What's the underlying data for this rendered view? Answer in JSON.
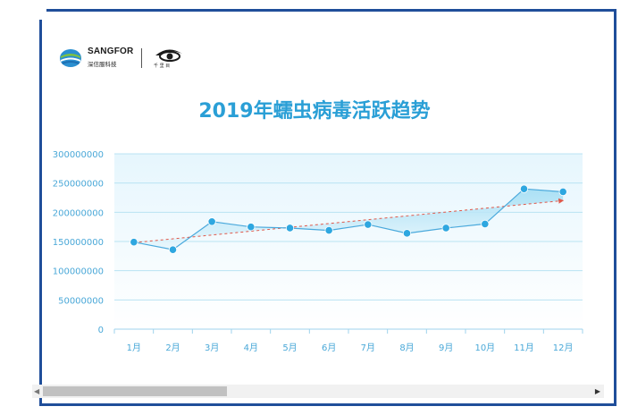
{
  "brand": {
    "name": "SANGFOR",
    "subtitle": "深信服科技",
    "partner_caption": "千 里 目"
  },
  "colors": {
    "title": "#2a9fd6",
    "line": "#4aa9dc",
    "marker": "#2ea7e0",
    "trend": "#e0584a",
    "grid": "#b9e3f3",
    "plot_bg_top": "#f4fbff",
    "frame": "#1f4e9a"
  },
  "chart_data": {
    "type": "line",
    "title": "2019年蠕虫病毒活跃趋势",
    "xlabel": "",
    "ylabel": "",
    "categories": [
      "1月",
      "2月",
      "3月",
      "4月",
      "5月",
      "6月",
      "7月",
      "8月",
      "9月",
      "10月",
      "11月",
      "12月"
    ],
    "series": [
      {
        "values": [
          149000000,
          136000000,
          184000000,
          175000000,
          173000000,
          169000000,
          179000000,
          164000000,
          173000000,
          180000000,
          240000000,
          235000000
        ]
      }
    ],
    "trendline": {
      "start": 148000000,
      "end": 220000000,
      "style": "dashed-red-arrow"
    },
    "y_ticks": [
      "0",
      "50000000",
      "100000000",
      "150000000",
      "200000000",
      "250000000",
      "300000000"
    ],
    "ylim": [
      0,
      300000000
    ],
    "grid": true,
    "legend": "none"
  }
}
